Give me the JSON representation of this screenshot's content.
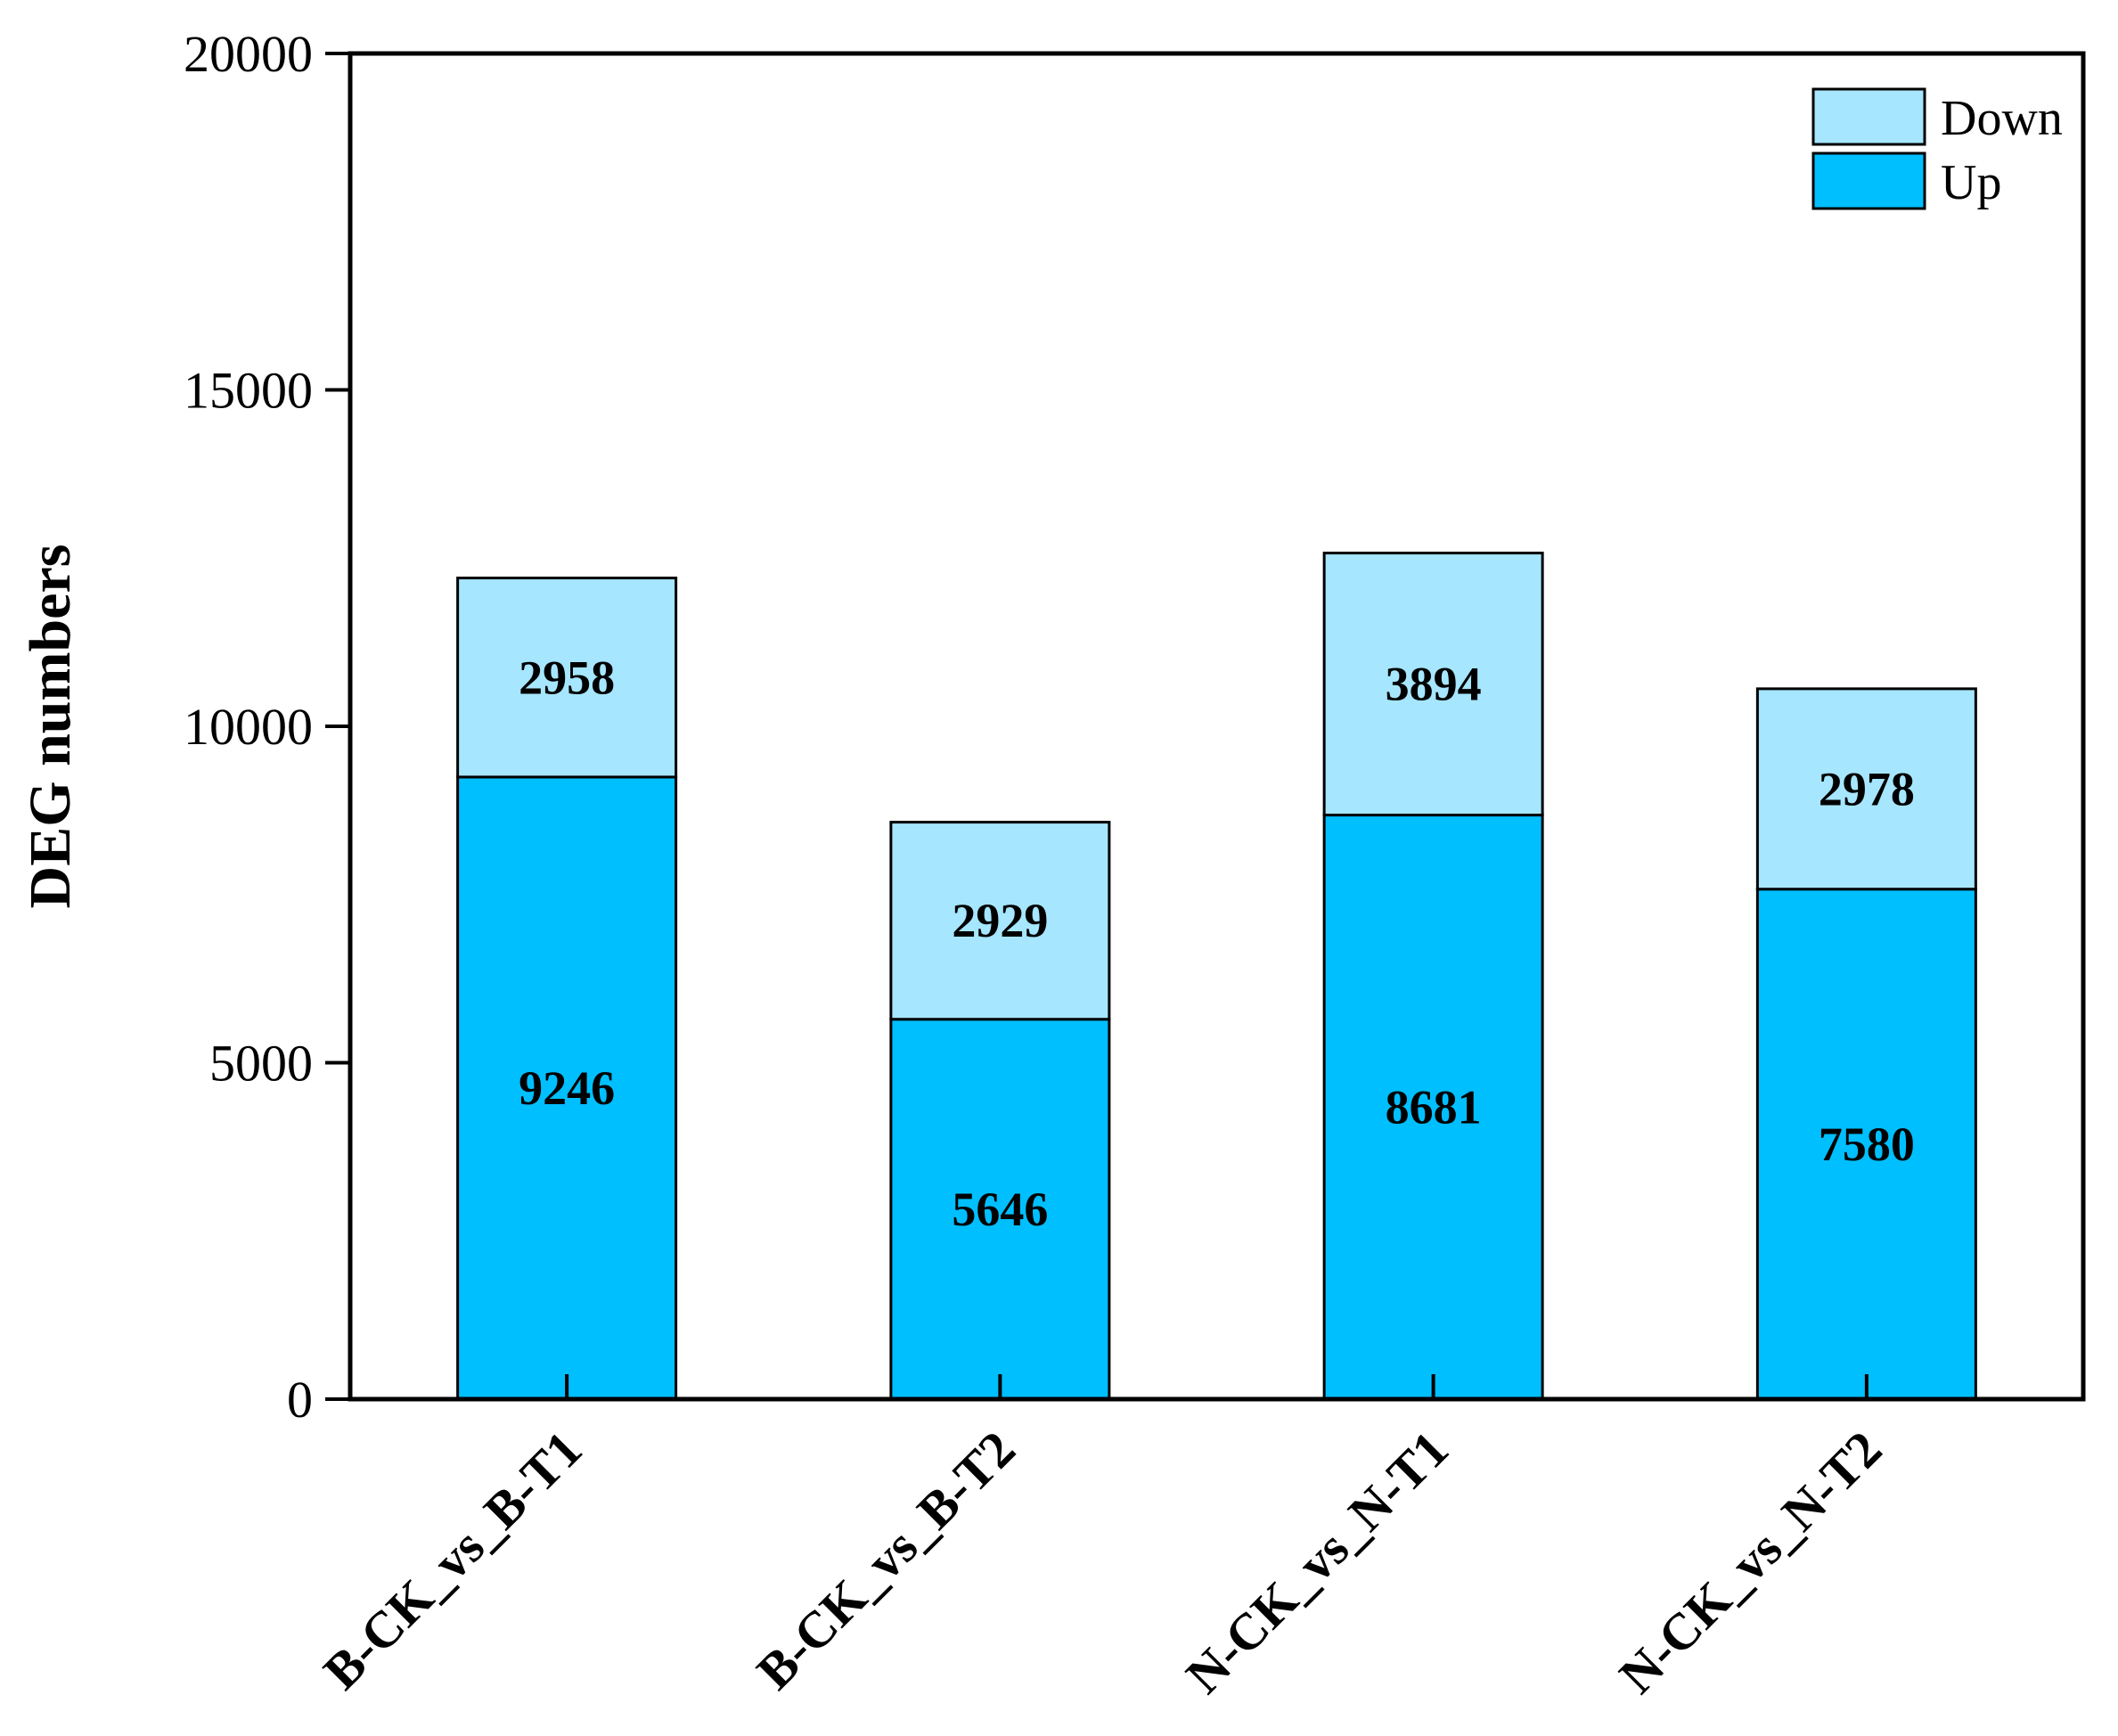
{
  "chart_data": {
    "type": "bar",
    "stacked": true,
    "categories": [
      "B-CK_vs_B-T1",
      "B-CK_vs_B-T2",
      "N-CK_vs_N-T1",
      "N-CK_vs_N-T2"
    ],
    "series": [
      {
        "name": "Up",
        "color": "#00bfff",
        "values": [
          9246,
          5646,
          8681,
          7580
        ]
      },
      {
        "name": "Down",
        "color": "#a6e6ff",
        "values": [
          2958,
          2929,
          3894,
          2978
        ]
      }
    ],
    "title": "",
    "xlabel": "",
    "ylabel": "DEG numbers",
    "ylim": [
      0,
      20000
    ],
    "yticks": [
      "0",
      "5000",
      "10000",
      "15000",
      "20000"
    ],
    "legend": {
      "position": "top-right",
      "order": [
        "Down",
        "Up"
      ]
    },
    "grid": false
  }
}
